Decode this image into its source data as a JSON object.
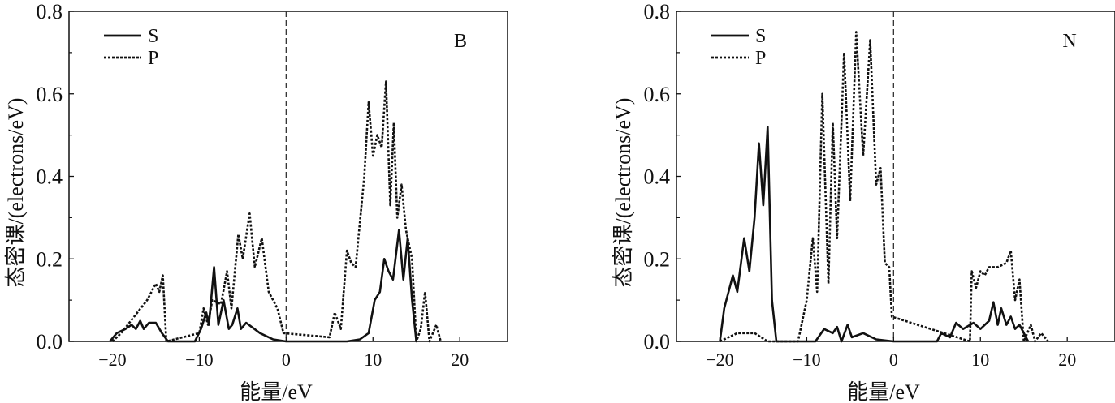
{
  "chart_data": [
    {
      "type": "line",
      "panel_label": "B",
      "xlabel": "能量/eV",
      "ylabel": "态密课/(electrons/eV)",
      "xlim": [
        -25,
        25.5
      ],
      "ylim": [
        0,
        0.8
      ],
      "xticks": [
        "−20",
        "−10",
        "0",
        "10",
        "20"
      ],
      "xtick_values": [
        -20,
        -10,
        0,
        10,
        20
      ],
      "yticks": [
        "0.0",
        "0.2",
        "0.4",
        "0.6",
        "0.8"
      ],
      "ytick_values": [
        0,
        0.2,
        0.4,
        0.6,
        0.8
      ],
      "fermi_level": 0,
      "legend_position": "top-left",
      "series": [
        {
          "name": "S",
          "style": "solid",
          "points": [
            [
              -20.3,
              0
            ],
            [
              -19.5,
              0.02
            ],
            [
              -18.5,
              0.03
            ],
            [
              -17.8,
              0.04
            ],
            [
              -17.3,
              0.03
            ],
            [
              -16.8,
              0.05
            ],
            [
              -16.4,
              0.03
            ],
            [
              -15.8,
              0.045
            ],
            [
              -15,
              0.045
            ],
            [
              -14.3,
              0.02
            ],
            [
              -13.6,
              0
            ],
            [
              -10.5,
              0
            ],
            [
              -9.8,
              0.03
            ],
            [
              -9.2,
              0.07
            ],
            [
              -8.9,
              0.04
            ],
            [
              -8.3,
              0.18
            ],
            [
              -7.8,
              0.04
            ],
            [
              -7.2,
              0.1
            ],
            [
              -6.6,
              0.03
            ],
            [
              -6.2,
              0.04
            ],
            [
              -5.6,
              0.08
            ],
            [
              -5.2,
              0.03
            ],
            [
              -4.6,
              0.045
            ],
            [
              -3,
              0.02
            ],
            [
              -1.5,
              0.005
            ],
            [
              0,
              0
            ],
            [
              7,
              0
            ],
            [
              8.5,
              0.005
            ],
            [
              9.5,
              0.02
            ],
            [
              10.2,
              0.1
            ],
            [
              10.8,
              0.12
            ],
            [
              11.3,
              0.2
            ],
            [
              11.8,
              0.17
            ],
            [
              12.3,
              0.15
            ],
            [
              13,
              0.27
            ],
            [
              13.5,
              0.15
            ],
            [
              14,
              0.25
            ],
            [
              14.5,
              0.1
            ],
            [
              15,
              0
            ]
          ]
        },
        {
          "name": "P",
          "style": "dotted",
          "points": [
            [
              -20,
              0
            ],
            [
              -19,
              0.02
            ],
            [
              -17.5,
              0.06
            ],
            [
              -16,
              0.1
            ],
            [
              -15,
              0.14
            ],
            [
              -14.6,
              0.12
            ],
            [
              -14.2,
              0.16
            ],
            [
              -13.8,
              0
            ],
            [
              -10,
              0.02
            ],
            [
              -9.5,
              0.08
            ],
            [
              -9,
              0.04
            ],
            [
              -8.5,
              0.1
            ],
            [
              -7.5,
              0.09
            ],
            [
              -6.8,
              0.17
            ],
            [
              -6.3,
              0.08
            ],
            [
              -5.5,
              0.26
            ],
            [
              -5,
              0.2
            ],
            [
              -4.2,
              0.31
            ],
            [
              -3.6,
              0.18
            ],
            [
              -2.8,
              0.25
            ],
            [
              -2,
              0.12
            ],
            [
              -1,
              0.08
            ],
            [
              -0.3,
              0.02
            ],
            [
              5,
              0.01
            ],
            [
              5.6,
              0.07
            ],
            [
              6.3,
              0.03
            ],
            [
              7,
              0.22
            ],
            [
              7.5,
              0.19
            ],
            [
              8,
              0.18
            ],
            [
              9,
              0.4
            ],
            [
              9.5,
              0.58
            ],
            [
              10,
              0.45
            ],
            [
              10.5,
              0.5
            ],
            [
              11,
              0.47
            ],
            [
              11.5,
              0.63
            ],
            [
              12,
              0.33
            ],
            [
              12.4,
              0.53
            ],
            [
              12.8,
              0.3
            ],
            [
              13.3,
              0.38
            ],
            [
              13.8,
              0.27
            ],
            [
              14.5,
              0.2
            ],
            [
              15,
              0
            ],
            [
              15.5,
              0.03
            ],
            [
              16,
              0.12
            ],
            [
              16.5,
              0
            ],
            [
              17.3,
              0.04
            ],
            [
              17.8,
              0
            ]
          ]
        }
      ]
    },
    {
      "type": "line",
      "panel_label": "N",
      "xlabel": "能量/eV",
      "ylabel": "态密课/(electrons/eV)",
      "xlim": [
        -25,
        25.5
      ],
      "ylim": [
        0,
        0.8
      ],
      "xticks": [
        "−20",
        "−10",
        "0",
        "10",
        "20"
      ],
      "xtick_values": [
        -20,
        -10,
        0,
        10,
        20
      ],
      "yticks": [
        "0.0",
        "0.2",
        "0.4",
        "0.6",
        "0.8"
      ],
      "ytick_values": [
        0,
        0.2,
        0.4,
        0.6,
        0.8
      ],
      "fermi_level": 0,
      "legend_position": "top-left",
      "series": [
        {
          "name": "S",
          "style": "solid",
          "points": [
            [
              -20,
              0
            ],
            [
              -19.5,
              0.08
            ],
            [
              -18.5,
              0.16
            ],
            [
              -18,
              0.12
            ],
            [
              -17.2,
              0.25
            ],
            [
              -16.6,
              0.17
            ],
            [
              -16,
              0.3
            ],
            [
              -15.5,
              0.48
            ],
            [
              -15,
              0.33
            ],
            [
              -14.5,
              0.52
            ],
            [
              -14,
              0.1
            ],
            [
              -13.5,
              0
            ],
            [
              -9,
              0
            ],
            [
              -8,
              0.03
            ],
            [
              -7,
              0.02
            ],
            [
              -6.5,
              0.035
            ],
            [
              -6,
              0
            ],
            [
              -5.3,
              0.04
            ],
            [
              -4.8,
              0.01
            ],
            [
              -3.5,
              0.02
            ],
            [
              -2,
              0.005
            ],
            [
              0,
              0
            ],
            [
              5,
              0
            ],
            [
              5.5,
              0.02
            ],
            [
              6.5,
              0.01
            ],
            [
              7.2,
              0.045
            ],
            [
              8,
              0.03
            ],
            [
              9.2,
              0.045
            ],
            [
              10,
              0.03
            ],
            [
              11,
              0.05
            ],
            [
              11.5,
              0.095
            ],
            [
              12,
              0.04
            ],
            [
              12.4,
              0.08
            ],
            [
              13,
              0.04
            ],
            [
              13.5,
              0.06
            ],
            [
              14,
              0.03
            ],
            [
              14.5,
              0.04
            ],
            [
              15.5,
              0
            ]
          ]
        },
        {
          "name": "P",
          "style": "dotted",
          "points": [
            [
              -20,
              0
            ],
            [
              -18,
              0.02
            ],
            [
              -16,
              0.02
            ],
            [
              -14.5,
              0
            ],
            [
              -11,
              0
            ],
            [
              -10,
              0.1
            ],
            [
              -9.3,
              0.25
            ],
            [
              -8.8,
              0.12
            ],
            [
              -8.2,
              0.6
            ],
            [
              -7.5,
              0.14
            ],
            [
              -7,
              0.53
            ],
            [
              -6.5,
              0.25
            ],
            [
              -5.7,
              0.7
            ],
            [
              -5,
              0.34
            ],
            [
              -4.3,
              0.75
            ],
            [
              -3.5,
              0.45
            ],
            [
              -2.7,
              0.73
            ],
            [
              -2,
              0.38
            ],
            [
              -1.5,
              0.42
            ],
            [
              -1,
              0.19
            ],
            [
              -0.5,
              0.18
            ],
            [
              -0.2,
              0.06
            ],
            [
              8.8,
              0
            ],
            [
              9,
              0.17
            ],
            [
              9.5,
              0.13
            ],
            [
              10,
              0.17
            ],
            [
              10.5,
              0.16
            ],
            [
              11,
              0.18
            ],
            [
              12,
              0.18
            ],
            [
              13,
              0.19
            ],
            [
              13.5,
              0.22
            ],
            [
              14,
              0.1
            ],
            [
              14.5,
              0.15
            ],
            [
              15,
              0
            ],
            [
              15.8,
              0.04
            ],
            [
              16.3,
              0
            ],
            [
              17,
              0.02
            ],
            [
              17.8,
              0
            ]
          ]
        }
      ]
    }
  ]
}
